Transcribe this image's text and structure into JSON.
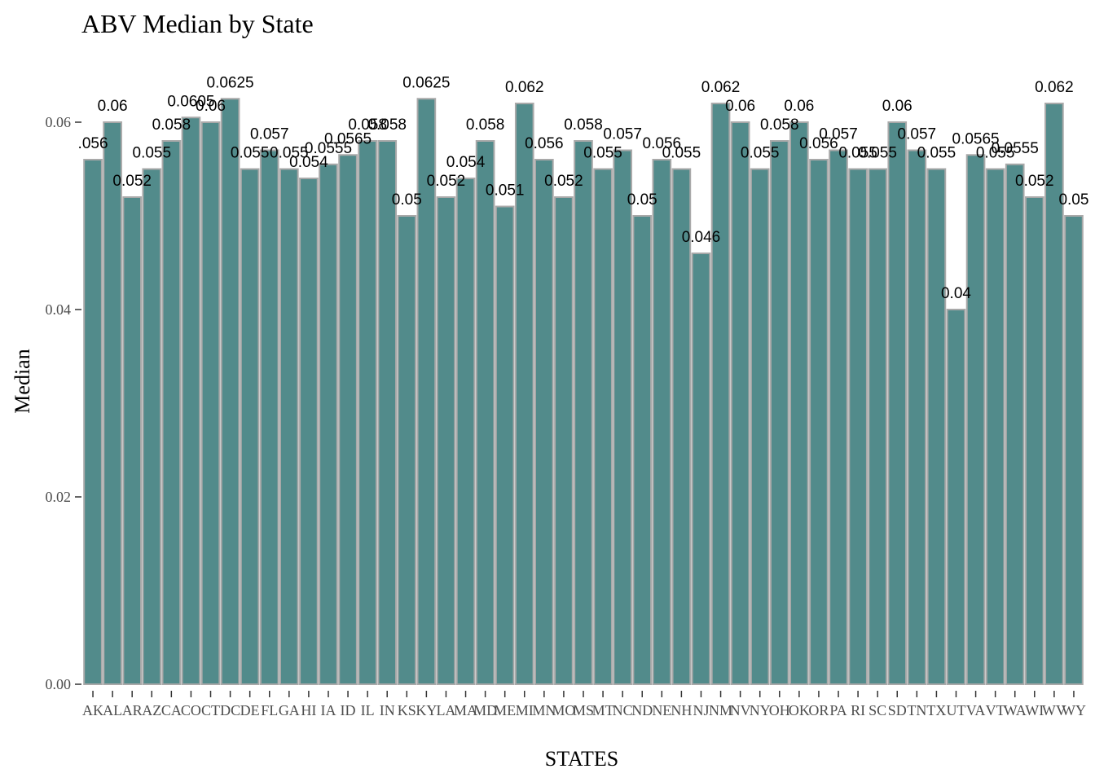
{
  "chart_data": {
    "type": "bar",
    "title": "ABV Median by State",
    "xlabel": "STATES",
    "ylabel": "Median",
    "ylim": [
      0,
      0.0665
    ],
    "y_ticks": [
      0,
      0.02,
      0.04,
      0.06
    ],
    "y_tick_labels": [
      "0.00",
      "0.02",
      "0.04",
      "0.06"
    ],
    "grid": false,
    "legend": "none",
    "bar_color": "#528b8b",
    "bar_outline_color": "#a9a9a9",
    "categories": [
      "AK",
      "AL",
      "AR",
      "AZ",
      "CA",
      "CO",
      "CT",
      "DC",
      "DE",
      "FL",
      "GA",
      "HI",
      "IA",
      "ID",
      "IL",
      "IN",
      "KS",
      "KY",
      "LA",
      "MA",
      "MD",
      "ME",
      "MI",
      "MN",
      "MO",
      "MS",
      "MT",
      "NC",
      "ND",
      "NE",
      "NH",
      "NJ",
      "NM",
      "NV",
      "NY",
      "OH",
      "OK",
      "OR",
      "PA",
      "RI",
      "SC",
      "SD",
      "TN",
      "TX",
      "UT",
      "VA",
      "VT",
      "WA",
      "WI",
      "WV",
      "WY"
    ],
    "values": [
      0.056,
      0.06,
      0.052,
      0.055,
      0.058,
      0.0605,
      0.06,
      0.0625,
      0.055,
      0.057,
      0.055,
      0.054,
      0.0555,
      0.0565,
      0.058,
      0.058,
      0.05,
      0.0625,
      0.052,
      0.054,
      0.058,
      0.051,
      0.062,
      0.056,
      0.052,
      0.058,
      0.055,
      0.057,
      0.05,
      0.056,
      0.055,
      0.046,
      0.062,
      0.06,
      0.055,
      0.058,
      0.06,
      0.056,
      0.057,
      0.055,
      0.055,
      0.06,
      0.057,
      0.055,
      0.04,
      0.0565,
      0.055,
      0.0555,
      0.052,
      0.062,
      0.05
    ],
    "data_labels": [
      ".056",
      "0.06",
      "0.052",
      "0.055",
      "0.058",
      "0.0605",
      "0.06",
      "0.0625",
      "0.055",
      "0.057",
      "0.055",
      "0.054",
      "0.0555",
      "0.0565",
      "0.058",
      "0.058",
      "0.05",
      "0.0625",
      "0.052",
      "0.054",
      "0.058",
      "0.051",
      "0.062",
      "0.056",
      "0.052",
      "0.058",
      "0.055",
      "0.057",
      "0.05",
      "0.056",
      "0.055",
      "0.046",
      "0.062",
      "0.06",
      "0.055",
      "0.058",
      "0.06",
      "0.056",
      "0.057",
      "0.055",
      "0.055",
      "0.06",
      "0.057",
      "0.055",
      "0.04",
      "0.0565",
      "0.055",
      "0.0555",
      "0.052",
      "0.062",
      "0.05"
    ]
  }
}
